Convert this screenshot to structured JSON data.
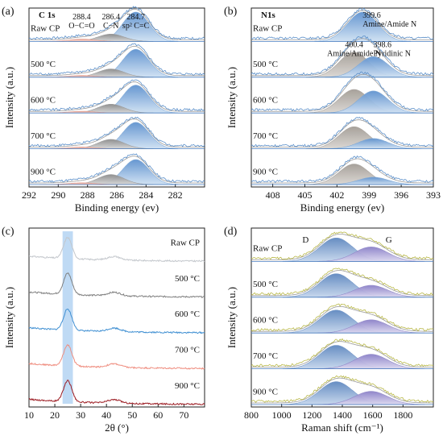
{
  "chart_data": [
    {
      "id": "a",
      "type": "area",
      "panel_label": "(a)",
      "title": "C 1s",
      "xlabel": "Binding energy (ev)",
      "ylabel": "Intensity (a.u.)",
      "xlim": [
        292,
        280
      ],
      "x_reversed": true,
      "xticks": [
        292,
        290,
        288,
        286,
        284,
        282
      ],
      "samples": [
        "Raw CP",
        "500 °C",
        "600 °C",
        "700 °C",
        "900 °C"
      ],
      "annotations": [
        {
          "x": 288.4,
          "text": "288.4",
          "text2": "O−C=O"
        },
        {
          "x": 286.4,
          "text": "286.4",
          "text2": "C−N"
        },
        {
          "x": 284.7,
          "text": "284.7",
          "text2": "sp² C=C"
        }
      ],
      "peaks": [
        {
          "center": 284.7,
          "amplitudes": [
            1.0,
            0.95,
            0.95,
            0.9,
            0.85
          ],
          "color": "#7ea8d6"
        },
        {
          "center": 286.4,
          "amplitudes": [
            0.25,
            0.28,
            0.3,
            0.32,
            0.34
          ],
          "color": "#9a9a9a"
        },
        {
          "center": 288.4,
          "amplitudes": [
            0.08,
            0.06,
            0.06,
            0.06,
            0.06
          ],
          "color": "#e39a8a"
        }
      ]
    },
    {
      "id": "b",
      "type": "area",
      "panel_label": "(b)",
      "title": "N1s",
      "xlabel": "Binding energy (ev)",
      "ylabel": "Intensity (a.u.)",
      "xlim": [
        410,
        393
      ],
      "x_reversed": true,
      "xticks": [
        408,
        405,
        402,
        399,
        396,
        393
      ],
      "samples": [
        "Raw CP",
        "500 °C",
        "600 °C",
        "700 °C",
        "900 °C"
      ],
      "annotations": [
        {
          "x": 399.6,
          "text": "399.6",
          "text2": "Amine/Amide N"
        },
        {
          "x": 400.4,
          "text": "400.4",
          "text2": "Amine/Amide N"
        },
        {
          "x": 398.6,
          "text": "398.6",
          "text2": "Pyridinic N"
        }
      ],
      "peaks": [
        {
          "center": 399.6,
          "amplitudes": [
            1.0,
            0,
            0,
            0,
            0
          ],
          "color": "#7ea8d6"
        },
        {
          "center": 400.4,
          "amplitudes": [
            0,
            0.85,
            0.8,
            0.75,
            0.7
          ],
          "color": "#a7a29c"
        },
        {
          "center": 398.6,
          "amplitudes": [
            0,
            0.7,
            0.75,
            0.35,
            0.25
          ],
          "color": "#7ea8d6"
        }
      ]
    },
    {
      "id": "c",
      "type": "line",
      "panel_label": "(c)",
      "xlabel": "2θ (°)",
      "ylabel": "Intensity (a.u.)",
      "xlim": [
        10,
        78
      ],
      "xticks": [
        10,
        20,
        30,
        40,
        50,
        60,
        70
      ],
      "highlight_band": [
        23,
        27
      ],
      "samples": [
        "Raw CP",
        "500 °C",
        "600 °C",
        "700 °C",
        "900 °C"
      ],
      "series": [
        {
          "name": "Raw CP",
          "peak_2theta": 25,
          "color": "#c3c7cc"
        },
        {
          "name": "500 °C",
          "peak_2theta": 25,
          "color": "#7f7f7f"
        },
        {
          "name": "600 °C",
          "peak_2theta": 25,
          "color": "#3f8fd2"
        },
        {
          "name": "700 °C",
          "peak_2theta": 25,
          "color": "#ef8e80"
        },
        {
          "name": "900 °C",
          "peak_2theta": 25,
          "color": "#9c1b22"
        }
      ]
    },
    {
      "id": "d",
      "type": "area",
      "panel_label": "(d)",
      "xlabel": "Raman shift (cm⁻¹)",
      "ylabel": "Intensity (a.u.)",
      "xlim": [
        800,
        2000
      ],
      "xticks": [
        800,
        1000,
        1200,
        1400,
        1600,
        1800
      ],
      "samples": [
        "Raw CP",
        "500 °C",
        "600 °C",
        "700 °C",
        "900 °C"
      ],
      "band_labels": [
        {
          "x": 1370,
          "text": "D"
        },
        {
          "x": 1590,
          "text": "G"
        }
      ],
      "peaks": [
        {
          "center": 1360,
          "amplitudes": [
            0.8,
            0.8,
            0.78,
            0.8,
            0.78
          ],
          "color": "#6f93c6"
        },
        {
          "center": 1590,
          "amplitudes": [
            0.55,
            0.45,
            0.5,
            0.55,
            0.5
          ],
          "color": "#8f86c8"
        }
      ]
    }
  ]
}
